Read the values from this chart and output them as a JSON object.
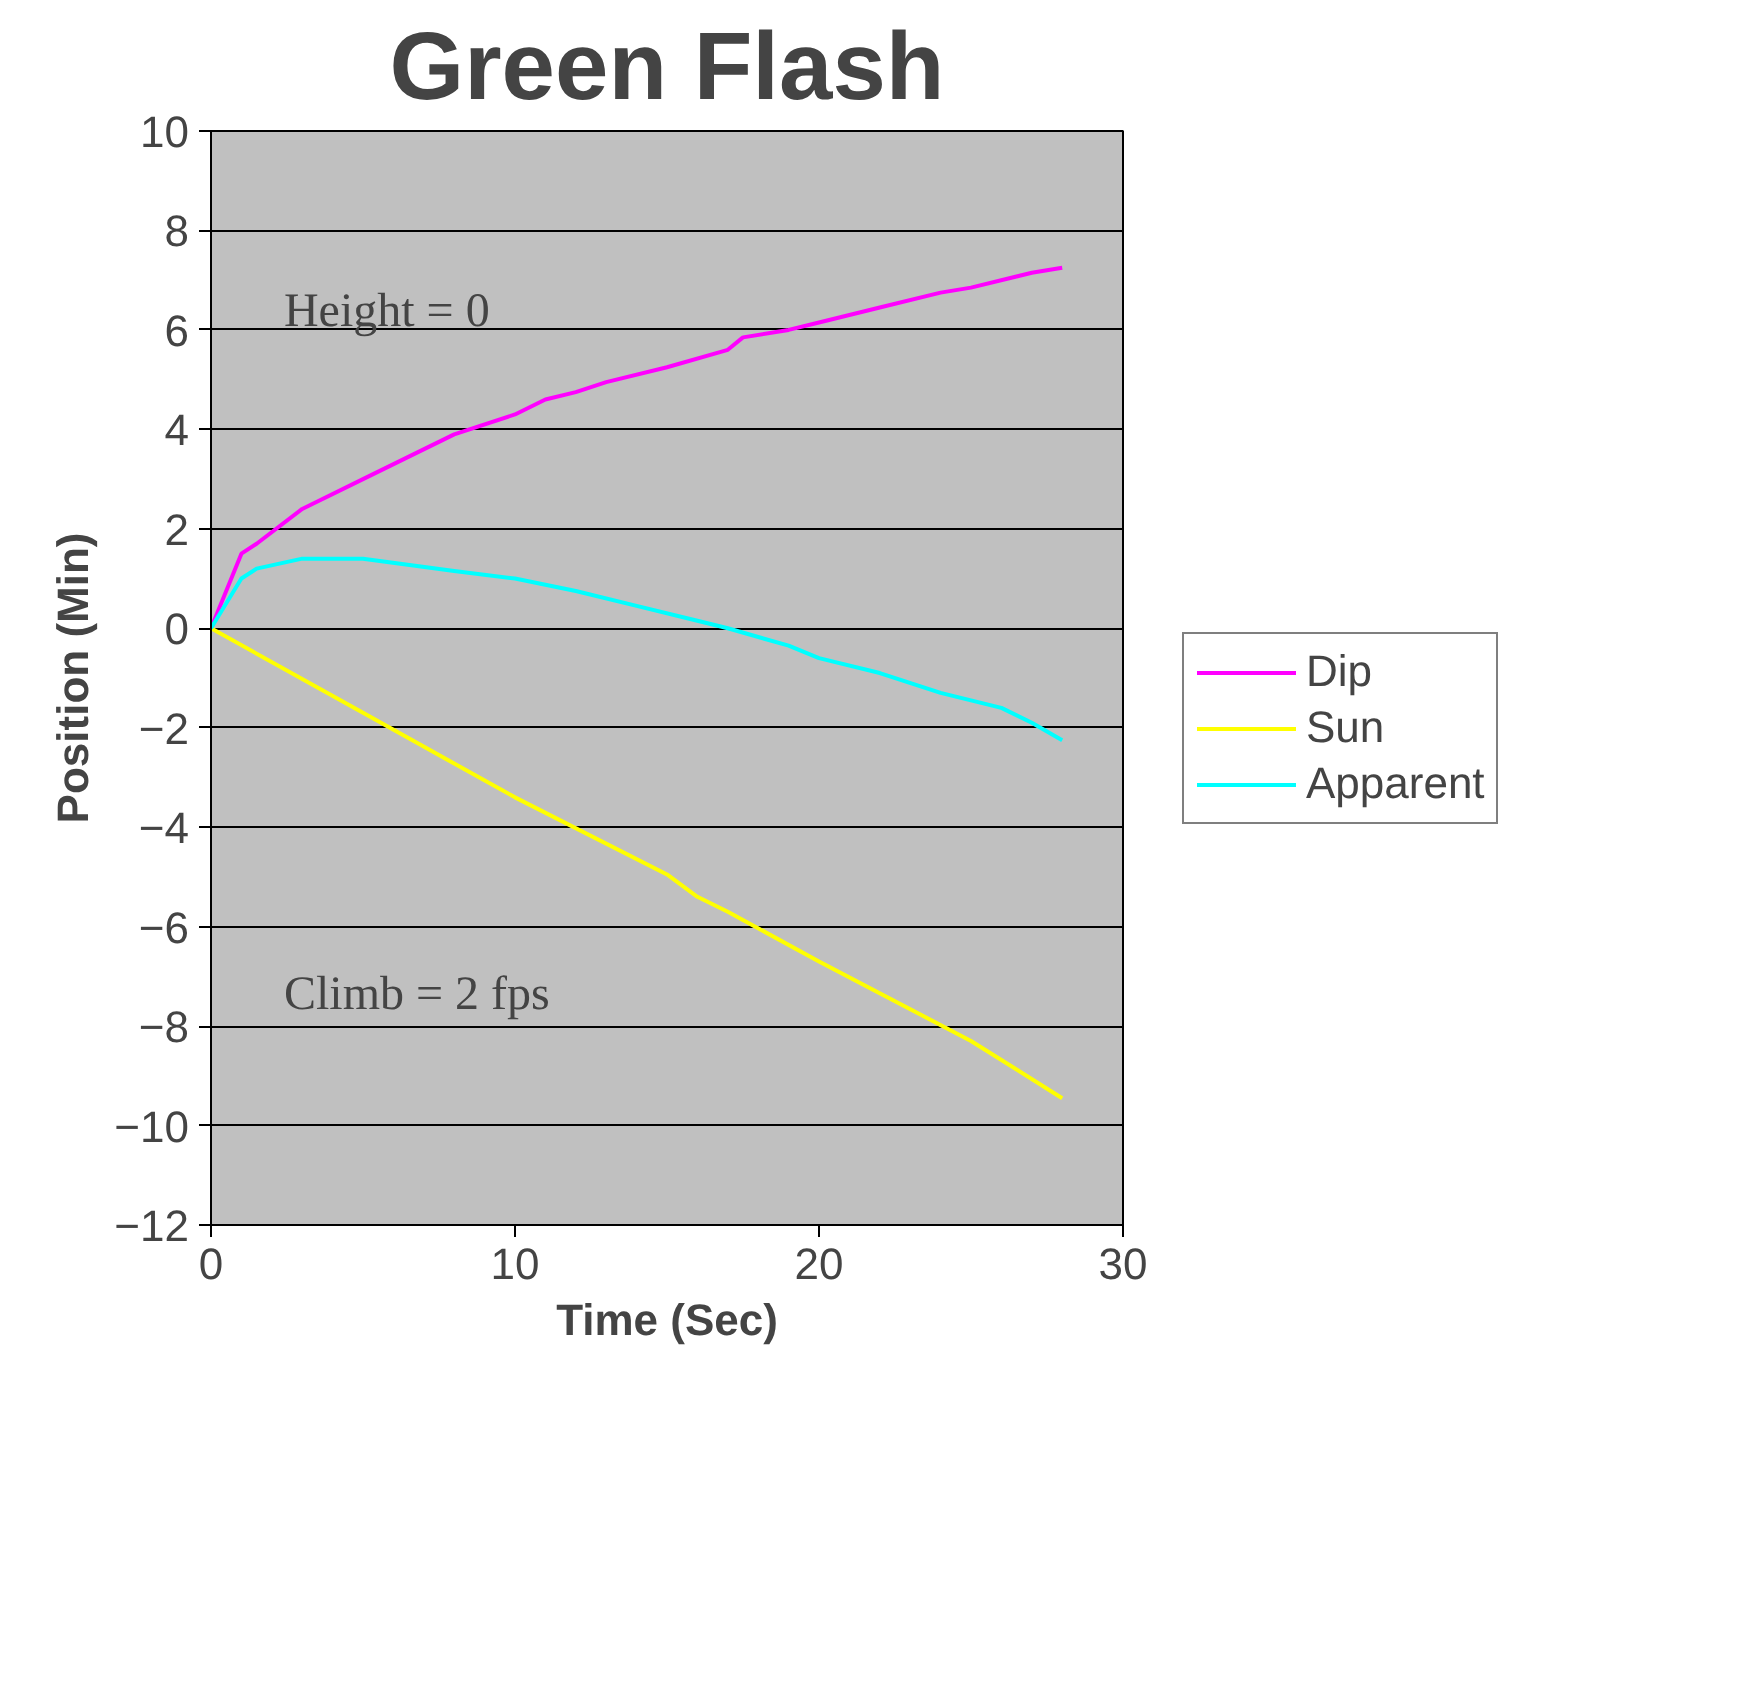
{
  "chart_data": {
    "type": "line",
    "title": "Green Flash",
    "xlabel": "Time (Sec)",
    "ylabel": "Position (Min)",
    "xlim": [
      0,
      30
    ],
    "xticks": [
      0,
      10,
      20,
      30
    ],
    "ylim": [
      -12,
      10
    ],
    "yticks": [
      -12,
      -10,
      -8,
      -6,
      -4,
      -2,
      0,
      2,
      4,
      6,
      8,
      10
    ],
    "grid": "y",
    "legend": "right",
    "line_style": "solid",
    "annotations": [
      "Height  = 0",
      "Climb = 2 fps"
    ],
    "series": [
      {
        "name": "Dip",
        "color": "#ff00ff",
        "x": [
          0,
          1,
          1.5,
          3,
          5,
          8,
          10,
          11,
          12,
          13,
          15,
          17,
          17.5,
          19,
          20,
          22,
          24,
          25,
          27,
          28
        ],
        "values": [
          0,
          1.5,
          1.7,
          2.4,
          3.0,
          3.9,
          4.3,
          4.6,
          4.75,
          4.95,
          5.25,
          5.6,
          5.85,
          6.0,
          6.15,
          6.45,
          6.75,
          6.85,
          7.15,
          7.25
        ]
      },
      {
        "name": "Sun",
        "color": "#ffff00",
        "x": [
          0,
          5,
          10,
          15,
          16,
          17,
          20,
          25,
          28
        ],
        "values": [
          0,
          -1.7,
          -3.4,
          -4.95,
          -5.4,
          -5.7,
          -6.7,
          -8.3,
          -9.45
        ]
      },
      {
        "name": "Apparent",
        "color": "#00ffff",
        "x": [
          0,
          1,
          1.5,
          3,
          5,
          8,
          10,
          12,
          14,
          16,
          17,
          19,
          20,
          22,
          24,
          26,
          27,
          28
        ],
        "values": [
          0,
          1.0,
          1.2,
          1.4,
          1.4,
          1.15,
          1.0,
          0.75,
          0.45,
          0.15,
          0,
          -0.35,
          -0.6,
          -0.9,
          -1.3,
          -1.6,
          -1.9,
          -2.25
        ]
      }
    ]
  }
}
